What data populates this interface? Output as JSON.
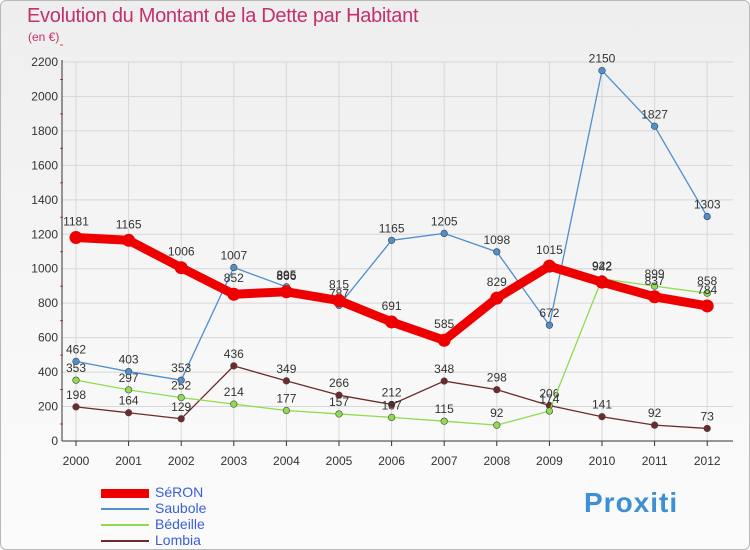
{
  "header": {
    "title": "Evolution du Montant de la Dette par Habitant",
    "subtitle": "(en €)"
  },
  "brand": {
    "name": "Proxiti"
  },
  "colors": {
    "title": "#c2316b",
    "legend_text": "#3a5ed8",
    "grid": "#d8d8d8"
  },
  "chart_data": {
    "type": "line",
    "title": "Evolution du Montant de la Dette par Habitant",
    "subtitle": "(en €)",
    "xlabel": "",
    "ylabel": "",
    "x": [
      "2000",
      "2001",
      "2002",
      "2003",
      "2004",
      "2005",
      "2006",
      "2007",
      "2008",
      "2009",
      "2010",
      "2011",
      "2012"
    ],
    "ylim": [
      0,
      2200
    ],
    "yticks": [
      0,
      200,
      400,
      600,
      800,
      1000,
      1200,
      1400,
      1600,
      1800,
      2000,
      2200
    ],
    "grid": true,
    "legend_position": "bottom-left",
    "series": [
      {
        "name": "SéRON",
        "color": "#ee0000",
        "values": [
          1181,
          1165,
          1006,
          852,
          866,
          815,
          691,
          585,
          829,
          1015,
          922,
          837,
          784
        ],
        "labels": [
          "1181",
          "1165",
          "1006",
          "852",
          "866",
          "815",
          "691",
          "585",
          "829",
          "1015",
          "922",
          "837",
          "784"
        ]
      },
      {
        "name": "Saubole",
        "color": "#4e8fce",
        "values": [
          462,
          403,
          353,
          1007,
          895,
          787,
          1165,
          1205,
          1098,
          672,
          2150,
          1827,
          1303
        ],
        "labels": [
          "462",
          "403",
          "353",
          "1007",
          "895",
          "787",
          "1165",
          "1205",
          "1098",
          "672",
          "2150",
          "1827",
          "1303"
        ]
      },
      {
        "name": "Bédeille",
        "color": "#90dc50",
        "values": [
          353,
          297,
          252,
          214,
          177,
          157,
          137,
          115,
          92,
          174,
          942,
          899,
          858
        ],
        "labels": [
          "353",
          "297",
          "252",
          "214",
          "177",
          "157",
          "137",
          "115",
          "92",
          "174",
          "942",
          "899",
          "858"
        ]
      },
      {
        "name": "Lombia",
        "color": "#6e2a2a",
        "values": [
          198,
          164,
          129,
          436,
          349,
          266,
          212,
          348,
          298,
          206,
          141,
          92,
          73
        ],
        "labels": [
          "198",
          "164",
          "129",
          "436",
          "349",
          "266",
          "212",
          "348",
          "298",
          "206",
          "141",
          "92",
          "73"
        ]
      }
    ]
  }
}
